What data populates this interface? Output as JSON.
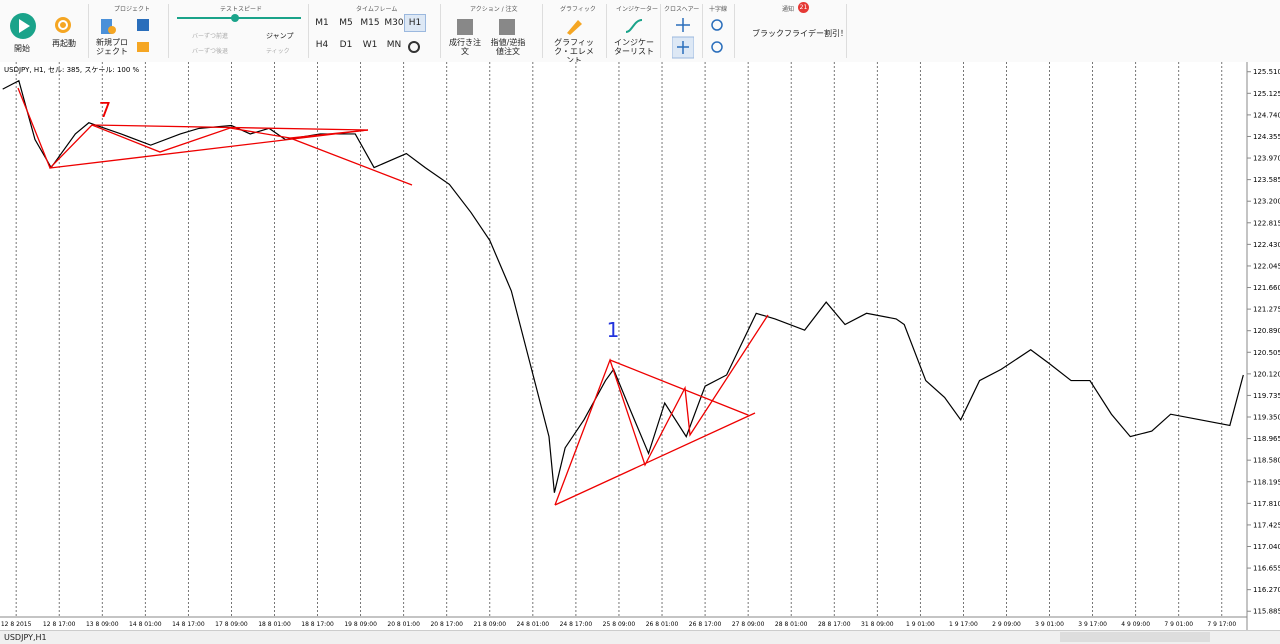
{
  "toolbar": {
    "start": "開始",
    "restart": "再起動",
    "project": "プロジェクト",
    "new_project": "新規プロジェクト",
    "test_speed": "テストスピード",
    "step_forward": "バーずつ前進",
    "jump": "ジャンプ",
    "step_back": "バーずつ後退",
    "tick": "ティック",
    "timeframe": "タイムフレーム",
    "timeframes": [
      "M1",
      "M5",
      "M15",
      "M30",
      "H1",
      "H4",
      "D1",
      "W1",
      "MN"
    ],
    "action": "アクション / 注文",
    "market_order": "成行き注文",
    "limit_order": "指値/逆指値注文",
    "graphic": "グラフィック",
    "graphic_element": "グラフィック・エレメント",
    "indicator": "インジケーター",
    "indicator_list": "インジケーターリスト",
    "crosshair": "クロスヘアー",
    "crosshair_lines": "十字線",
    "notice": "通知",
    "notice_count": 21,
    "promo": "ブラックフライデー割引！"
  },
  "chart_header": "USDJPY, H1, セル: 385, スケール: 100 %",
  "chart_data": {
    "type": "line",
    "color": "#000000",
    "grid": true,
    "annotations": [
      "7",
      "1"
    ],
    "x": [
      1,
      7,
      13,
      19,
      28,
      33,
      45,
      56,
      67,
      74,
      86,
      93,
      100,
      106,
      119,
      132,
      139,
      151,
      158,
      167,
      175,
      182,
      190,
      197,
      204,
      206,
      210,
      217,
      225,
      228,
      234,
      241,
      247,
      255,
      262,
      270,
      277,
      281,
      288,
      299,
      307,
      314,
      322,
      333,
      336,
      344,
      351,
      357,
      364,
      372,
      383,
      390,
      398,
      405,
      413,
      420,
      428,
      435,
      446,
      457,
      462
    ],
    "values": [
      125.2,
      125.35,
      124.3,
      123.8,
      124.4,
      124.6,
      124.4,
      124.2,
      124.4,
      124.5,
      124.55,
      124.4,
      124.5,
      124.3,
      124.4,
      124.4,
      123.8,
      124.05,
      123.8,
      123.5,
      123.0,
      122.5,
      121.6,
      120.3,
      119.0,
      118.0,
      118.8,
      119.3,
      120.0,
      120.2,
      119.5,
      118.7,
      119.6,
      119.0,
      119.9,
      120.1,
      120.8,
      121.2,
      121.1,
      120.9,
      121.4,
      121.0,
      121.2,
      121.1,
      121.0,
      120.0,
      119.7,
      119.3,
      120.0,
      120.2,
      120.55,
      120.3,
      120.0,
      120.0,
      119.4,
      119.0,
      119.1,
      119.4,
      119.3,
      119.2,
      120.1
    ],
    "xlim": [
      0,
      463
    ],
    "xticks": [
      {
        "value": 6,
        "label": "12 8 2015"
      },
      {
        "value": 22,
        "label": "12 8 17:00"
      },
      {
        "value": 38,
        "label": "13 8 09:00"
      },
      {
        "value": 54,
        "label": "14 8 01:00"
      },
      {
        "value": 70,
        "label": "14 8 17:00"
      },
      {
        "value": 86,
        "label": "17 8 09:00"
      },
      {
        "value": 102,
        "label": "18 8 01:00"
      },
      {
        "value": 118,
        "label": "18 8 17:00"
      },
      {
        "value": 134,
        "label": "19 8 09:00"
      },
      {
        "value": 150,
        "label": "20 8 01:00"
      },
      {
        "value": 166,
        "label": "20 8 17:00"
      },
      {
        "value": 182,
        "label": "21 8 09:00"
      },
      {
        "value": 198,
        "label": "24 8 01:00"
      },
      {
        "value": 214,
        "label": "24 8 17:00"
      },
      {
        "value": 230,
        "label": "25 8 09:00"
      },
      {
        "value": 246,
        "label": "26 8 01:00"
      },
      {
        "value": 262,
        "label": "26 8 17:00"
      },
      {
        "value": 278,
        "label": "27 8 09:00"
      },
      {
        "value": 294,
        "label": "28 8 01:00"
      },
      {
        "value": 310,
        "label": "28 8 17:00"
      },
      {
        "value": 326,
        "label": "31 8 09:00"
      },
      {
        "value": 342,
        "label": "1 9 01:00"
      },
      {
        "value": 358,
        "label": "1 9 17:00"
      },
      {
        "value": 374,
        "label": "2 9 09:00"
      },
      {
        "value": 390,
        "label": "3 9 01:00"
      },
      {
        "value": 406,
        "label": "3 9 17:00"
      },
      {
        "value": 422,
        "label": "4 9 09:00"
      },
      {
        "value": 438,
        "label": "7 9 01:00"
      },
      {
        "value": 454,
        "label": "7 9 17:00"
      }
    ],
    "ylim": [
      115.8,
      125.63
    ],
    "yticks": [
      {
        "value": 125.51,
        "label": "125.510"
      },
      125.125,
      {
        "value": 124.74,
        "label": "124.740"
      },
      124.355,
      {
        "value": 123.97,
        "label": "123.970"
      },
      123.585,
      {
        "value": 123.2,
        "label": "123.200"
      },
      122.815,
      {
        "value": 122.43,
        "label": "122.430"
      },
      122.045,
      {
        "value": 121.66,
        "label": "121.660"
      },
      121.275,
      {
        "value": 120.89,
        "label": "120.890"
      },
      120.505,
      {
        "value": 120.12,
        "label": "120.120"
      },
      119.735,
      {
        "value": 119.35,
        "label": "119.350"
      },
      118.965,
      {
        "value": 118.58,
        "label": "118.580"
      },
      118.195,
      {
        "value": 117.81,
        "label": "117.810"
      },
      117.425,
      {
        "value": 117.04,
        "label": "117.040"
      },
      116.655,
      {
        "value": 116.27,
        "label": "116.270"
      },
      115.885
    ]
  },
  "tab": "USDJPY,H1"
}
